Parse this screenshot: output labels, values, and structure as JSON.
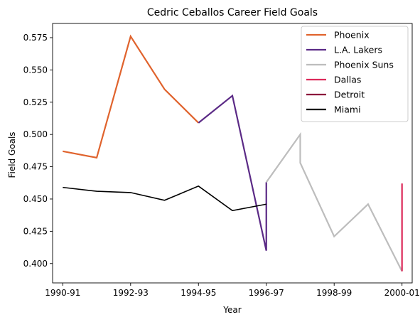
{
  "chart_data": {
    "type": "line",
    "title": "Cedric Ceballos Career Field Goals",
    "xlabel": "Year",
    "ylabel": "Field Goals",
    "x_tick_labels": [
      "1990-91",
      "1992-93",
      "1994-95",
      "1996-97",
      "1998-99",
      "2000-01"
    ],
    "y_ticks": [
      "0.400",
      "0.425",
      "0.450",
      "0.475",
      "0.500",
      "0.525",
      "0.550",
      "0.575"
    ],
    "ylim": [
      0.385,
      0.586
    ],
    "xlim": [
      -0.3,
      10.3
    ],
    "legend_position": "top-right",
    "series": [
      {
        "name": "Phoenix",
        "color": "#e0632d",
        "points": [
          [
            0,
            0.487
          ],
          [
            1,
            0.482
          ],
          [
            2,
            0.576
          ],
          [
            3,
            0.535
          ],
          [
            4,
            0.509
          ]
        ]
      },
      {
        "name": "L.A. Lakers",
        "color": "#5b2a86",
        "points": [
          [
            4,
            0.509
          ],
          [
            5,
            0.53
          ],
          [
            6,
            0.41
          ],
          [
            6,
            0.463
          ]
        ]
      },
      {
        "name": "Phoenix Suns",
        "color": "#bdbdbd",
        "points": [
          [
            6,
            0.463
          ],
          [
            7,
            0.5
          ],
          [
            7,
            0.478
          ],
          [
            8,
            0.421
          ],
          [
            9,
            0.446
          ],
          [
            10,
            0.394
          ]
        ]
      },
      {
        "name": "Dallas",
        "color": "#dc2a5a",
        "points": [
          [
            10,
            0.394
          ],
          [
            10,
            0.462
          ]
        ]
      },
      {
        "name": "Detroit",
        "color": "#8b0a3c",
        "points": []
      },
      {
        "name": "Miami",
        "color": "#000000",
        "points": [
          [
            0,
            0.459
          ],
          [
            1,
            0.456
          ],
          [
            2,
            0.455
          ],
          [
            3,
            0.449
          ],
          [
            4,
            0.46
          ],
          [
            5,
            0.441
          ],
          [
            6,
            0.446
          ]
        ]
      }
    ]
  }
}
